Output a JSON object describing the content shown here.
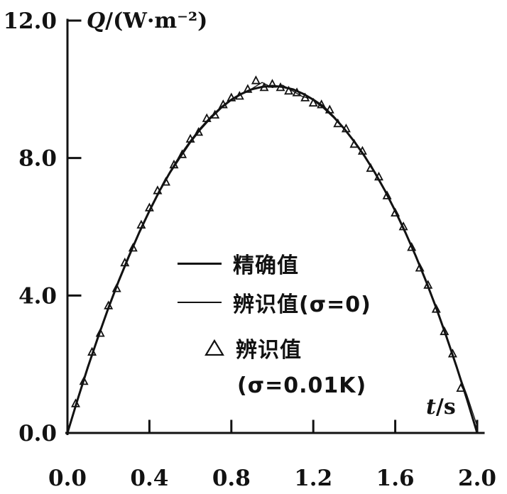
{
  "chart_data": {
    "type": "line",
    "title": "",
    "xlabel": {
      "symbol": "t",
      "unit": "/s"
    },
    "ylabel": {
      "symbol": "Q",
      "unit": "/(W·m⁻²)"
    },
    "xlim": [
      0,
      2
    ],
    "ylim": [
      0,
      12
    ],
    "grid": false,
    "x_ticks": {
      "values": [
        0,
        0.4,
        0.8,
        1.2,
        1.6,
        2.0
      ],
      "labels": [
        "0.0",
        "0.4",
        "0.8",
        "1.2",
        "1.6",
        "2.0"
      ]
    },
    "y_ticks": {
      "values": [
        0,
        4,
        8,
        12
      ],
      "labels": [
        "0.0",
        "4.0",
        "8.0",
        "12.0"
      ]
    },
    "legend": {
      "position": "center",
      "items": [
        {
          "marker": "thick-line",
          "label": "精确值"
        },
        {
          "marker": "thin-line",
          "label": "辨识值(σ=0)"
        },
        {
          "marker": "triangle",
          "label": "辨识值",
          "label2": "(σ=0.01K)"
        }
      ]
    },
    "series": [
      {
        "name": "精确值",
        "type": "line",
        "points": [
          [
            0,
            0
          ],
          [
            0.05,
            0.98
          ],
          [
            0.1,
            1.92
          ],
          [
            0.15,
            2.8
          ],
          [
            0.2,
            3.64
          ],
          [
            0.25,
            4.42
          ],
          [
            0.3,
            5.15
          ],
          [
            0.35,
            5.83
          ],
          [
            0.4,
            6.46
          ],
          [
            0.45,
            7.05
          ],
          [
            0.5,
            7.58
          ],
          [
            0.55,
            8.06
          ],
          [
            0.6,
            8.48
          ],
          [
            0.65,
            8.86
          ],
          [
            0.7,
            9.19
          ],
          [
            0.75,
            9.47
          ],
          [
            0.8,
            9.7
          ],
          [
            0.85,
            9.87
          ],
          [
            0.9,
            10.0
          ],
          [
            0.95,
            10.07
          ],
          [
            1,
            10.1
          ],
          [
            1.05,
            10.07
          ],
          [
            1.1,
            10.0
          ],
          [
            1.15,
            9.87
          ],
          [
            1.2,
            9.7
          ],
          [
            1.25,
            9.47
          ],
          [
            1.3,
            9.19
          ],
          [
            1.35,
            8.86
          ],
          [
            1.4,
            8.48
          ],
          [
            1.45,
            8.06
          ],
          [
            1.5,
            7.58
          ],
          [
            1.55,
            7.05
          ],
          [
            1.6,
            6.46
          ],
          [
            1.65,
            5.83
          ],
          [
            1.7,
            5.15
          ],
          [
            1.75,
            4.42
          ],
          [
            1.8,
            3.64
          ],
          [
            1.85,
            2.8
          ],
          [
            1.9,
            1.92
          ],
          [
            1.95,
            0.98
          ],
          [
            2,
            0
          ]
        ]
      },
      {
        "name": "辨识值(σ=0)",
        "type": "line",
        "points": [
          [
            0,
            0
          ],
          [
            0.05,
            0.95
          ],
          [
            0.1,
            1.88
          ],
          [
            0.15,
            2.78
          ],
          [
            0.2,
            3.6
          ],
          [
            0.25,
            4.38
          ],
          [
            0.3,
            5.1
          ],
          [
            0.35,
            5.8
          ],
          [
            0.4,
            6.5
          ],
          [
            0.45,
            7.08
          ],
          [
            0.5,
            7.55
          ],
          [
            0.55,
            8.0
          ],
          [
            0.6,
            8.44
          ],
          [
            0.65,
            8.82
          ],
          [
            0.7,
            9.15
          ],
          [
            0.75,
            9.44
          ],
          [
            0.8,
            9.68
          ],
          [
            0.85,
            9.85
          ],
          [
            0.9,
            10.02
          ],
          [
            0.95,
            10.2
          ],
          [
            1,
            10.05
          ],
          [
            1.05,
            10.12
          ],
          [
            1.1,
            9.95
          ],
          [
            1.15,
            9.78
          ],
          [
            1.2,
            9.72
          ],
          [
            1.25,
            9.52
          ],
          [
            1.3,
            9.22
          ],
          [
            1.35,
            8.88
          ],
          [
            1.4,
            8.5
          ],
          [
            1.45,
            8.08
          ],
          [
            1.5,
            7.6
          ],
          [
            1.55,
            7.02
          ],
          [
            1.6,
            6.44
          ],
          [
            1.65,
            5.85
          ],
          [
            1.7,
            5.12
          ],
          [
            1.75,
            4.4
          ],
          [
            1.8,
            3.62
          ],
          [
            1.85,
            2.78
          ],
          [
            1.9,
            1.9
          ],
          [
            1.95,
            1.1
          ],
          [
            2,
            0.2
          ]
        ]
      },
      {
        "name": "辨识值(σ=0.01K)",
        "type": "scatter",
        "marker": "triangle",
        "points": [
          [
            0.04,
            0.85
          ],
          [
            0.08,
            1.5
          ],
          [
            0.12,
            2.35
          ],
          [
            0.16,
            2.9
          ],
          [
            0.2,
            3.7
          ],
          [
            0.24,
            4.2
          ],
          [
            0.28,
            4.95
          ],
          [
            0.32,
            5.38
          ],
          [
            0.36,
            6.05
          ],
          [
            0.4,
            6.55
          ],
          [
            0.44,
            7.05
          ],
          [
            0.48,
            7.3
          ],
          [
            0.52,
            7.8
          ],
          [
            0.56,
            8.1
          ],
          [
            0.6,
            8.55
          ],
          [
            0.64,
            8.75
          ],
          [
            0.68,
            9.15
          ],
          [
            0.72,
            9.25
          ],
          [
            0.76,
            9.55
          ],
          [
            0.8,
            9.75
          ],
          [
            0.84,
            9.8
          ],
          [
            0.88,
            10.0
          ],
          [
            0.92,
            10.25
          ],
          [
            0.96,
            10.05
          ],
          [
            1.0,
            10.15
          ],
          [
            1.04,
            10.05
          ],
          [
            1.08,
            9.95
          ],
          [
            1.12,
            9.9
          ],
          [
            1.16,
            9.75
          ],
          [
            1.2,
            9.6
          ],
          [
            1.24,
            9.55
          ],
          [
            1.28,
            9.4
          ],
          [
            1.32,
            9.0
          ],
          [
            1.36,
            8.85
          ],
          [
            1.4,
            8.4
          ],
          [
            1.44,
            8.2
          ],
          [
            1.48,
            7.7
          ],
          [
            1.52,
            7.45
          ],
          [
            1.56,
            6.9
          ],
          [
            1.6,
            6.4
          ],
          [
            1.64,
            6.0
          ],
          [
            1.68,
            5.4
          ],
          [
            1.72,
            4.8
          ],
          [
            1.76,
            4.3
          ],
          [
            1.8,
            3.6
          ],
          [
            1.84,
            2.95
          ],
          [
            1.88,
            2.3
          ],
          [
            1.92,
            1.3
          ]
        ]
      }
    ]
  }
}
